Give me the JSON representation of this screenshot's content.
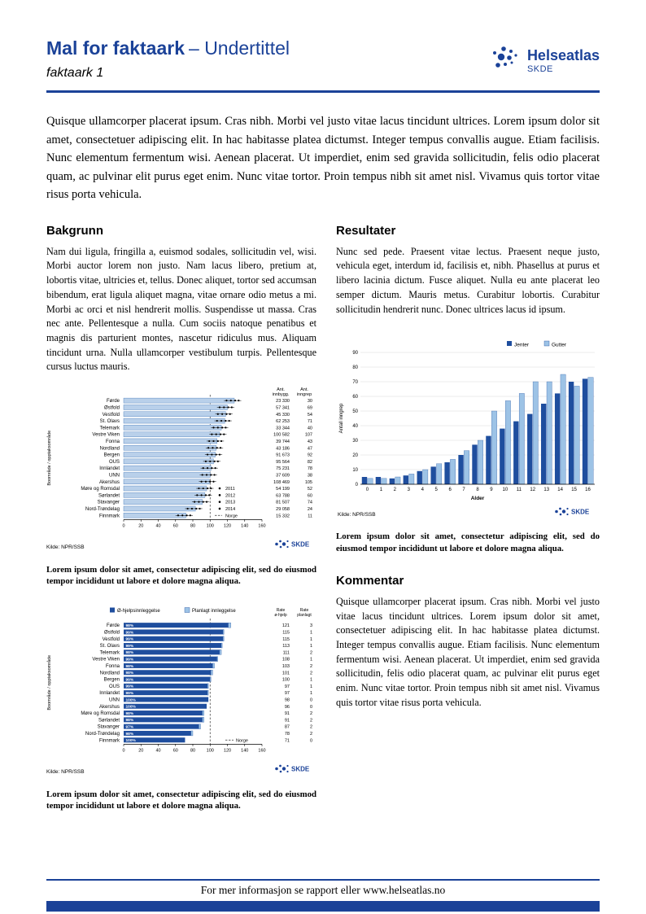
{
  "colors": {
    "brand": "#1b4298",
    "bar_dark": "#1f4e9e",
    "bar_light": "#b9d0ea",
    "bar_light_stroke": "#5f8cc4",
    "bar_light2": "#9dc3e6",
    "grid": "#d8d8d8"
  },
  "header": {
    "title_bold": "Mal for faktaark",
    "title_light": "– Undertittel",
    "subtitle": "faktaark 1",
    "logo_name": "Helseatlas",
    "logo_sub": "SKDE"
  },
  "intro": "Quisque ullamcorper placerat ipsum. Cras nibh. Morbi vel justo vitae lacus tincidunt ultrices. Lorem ipsum dolor sit amet, consectetuer adipiscing elit. In hac habitasse platea dictumst. Integer tempus convallis augue. Etiam facilisis. Nunc elementum fermentum wisi. Aenean placerat. Ut imperdiet, enim sed gravida sollicitudin, felis odio placerat quam, ac pulvinar elit purus eget enim. Nunc vitae tortor. Proin tempus nibh sit amet nisl. Vivamus quis tortor vitae risus porta vehicula.",
  "sections": {
    "bakgrunn": {
      "heading": "Bakgrunn",
      "body": "Nam dui ligula, fringilla a, euismod sodales, sollicitudin vel, wisi. Morbi auctor lorem non justo. Nam lacus libero, pretium at, lobortis vitae, ultricies et, tellus. Donec aliquet, tortor sed accumsan bibendum, erat ligula aliquet magna, vitae ornare odio metus a mi. Morbi ac orci et nisl hendrerit mollis. Suspendisse ut massa. Cras nec ante. Pellentesque a nulla. Cum sociis natoque penatibus et magnis dis parturient montes, nascetur ridiculus mus. Aliquam tincidunt urna. Nulla ullamcorper vestibulum turpis. Pellentesque cursus luctus mauris."
    },
    "resultater": {
      "heading": "Resultater",
      "body": "Nunc sed pede. Praesent vitae lectus. Praesent neque justo, vehicula eget, interdum id, facilisis et, nibh. Phasellus at purus et libero lacinia dictum. Fusce aliquet. Nulla eu ante placerat leo semper dictum. Mauris metus. Curabitur lobortis. Curabitur sollicitudin hendrerit nunc. Donec ultrices lacus id ipsum."
    },
    "kommentar": {
      "heading": "Kommentar",
      "body": "Quisque ullamcorper placerat ipsum. Cras nibh. Morbi vel justo vitae lacus tincidunt ultrices. Lorem ipsum dolor sit amet, consectetuer adipiscing elit. In hac habitasse platea dictumst. Integer tempus convallis augue. Etiam facilisis. Nunc elementum fermentum wisi. Aenean placerat. Ut imperdiet, enim sed gravida sollicitudin, felis odio placerat quam, ac pulvinar elit purus eget enim. Nunc vitae tortor. Proin tempus nibh sit amet nisl. Vivamus quis tortor vitae risus porta vehicula."
    }
  },
  "captions": {
    "chart1": "Lorem ipsum dolor sit amet, consectetur adipiscing elit, sed do eiusmod tempor incididunt ut labore et dolore magna aliqua.",
    "chart2": "Lorem ipsum dolor sit amet, consectetur adipiscing elit, sed do eiusmod tempor incididunt ut labore et dolore magna aliqua.",
    "chart3": "Lorem ipsum dolor sit amet, consectetur adipiscing elit, sed do eiusmod tempor incididunt ut labore et dolore magna aliqua."
  },
  "footer": {
    "text": "For mer informasjon se rapport eller www.helseatlas.no"
  },
  "chart_data": [
    {
      "type": "bar",
      "orientation": "horizontal",
      "title": "",
      "ylabel": "Boområde / opptaksområde",
      "categories": [
        "Førde",
        "Østfold",
        "Vestfold",
        "St. Olavs",
        "Telemark",
        "Vestre Viken",
        "Fonna",
        "Nordland",
        "Bergen",
        "OUS",
        "Innlandet",
        "UNN",
        "Akershus",
        "Møre og Romsdal",
        "Sørlandet",
        "Stavanger",
        "Nord-Trøndelag",
        "Finnmark"
      ],
      "rates": [
        128,
        120,
        118,
        117,
        113,
        111,
        108,
        107,
        106,
        104,
        101,
        100,
        99,
        96,
        94,
        91,
        83,
        72
      ],
      "xlim": [
        0,
        160
      ],
      "xticks": [
        0,
        20,
        40,
        60,
        80,
        100,
        120,
        140,
        160
      ],
      "norge_line": 100,
      "legend": [
        "2011",
        "2012",
        "2013",
        "2014",
        "Norge"
      ],
      "table": {
        "col1_header": "Ant. innbygg.",
        "col2_header": "Ant. inngrep",
        "col1": [
          "23 330",
          "57 341",
          "45 330",
          "62 253",
          "33 344",
          "100 582",
          "39 744",
          "43 186",
          "91 673",
          "95 564",
          "75 231",
          "37 609",
          "108 469",
          "54 199",
          "63 788",
          "81 507",
          "29 058",
          "15 332"
        ],
        "col2": [
          30,
          69,
          54,
          71,
          40,
          107,
          43,
          47,
          92,
          82,
          78,
          38,
          105,
          52,
          60,
          74,
          24,
          11
        ]
      },
      "source": "Kilde: NPR/SSB"
    },
    {
      "type": "bar",
      "orientation": "vertical",
      "title": "",
      "xlabel": "Alder",
      "ylabel": "Antall inngrep",
      "categories": [
        0,
        1,
        2,
        3,
        4,
        5,
        6,
        7,
        8,
        9,
        10,
        11,
        12,
        13,
        14,
        15,
        16
      ],
      "series": [
        {
          "name": "Jenter",
          "values": [
            5,
            5,
            4,
            6,
            9,
            12,
            15,
            20,
            27,
            33,
            38,
            43,
            48,
            55,
            62,
            70,
            72
          ]
        },
        {
          "name": "Gutter",
          "values": [
            4,
            4,
            5,
            7,
            10,
            14,
            17,
            23,
            30,
            50,
            57,
            62,
            70,
            70,
            75,
            67,
            73
          ]
        }
      ],
      "ylim": [
        0,
        90
      ],
      "yticks_step": 10,
      "grid": true,
      "legend_position": "top-right",
      "source": "Kilde: NPR/SSB"
    },
    {
      "type": "bar",
      "orientation": "horizontal",
      "stacked": true,
      "title": "",
      "ylabel": "Boområde / opptaksområde",
      "legend": [
        "Ø-hjelpsinnleggelse",
        "Planlagt innleggelse"
      ],
      "categories": [
        "Førde",
        "Østfold",
        "Vestfold",
        "St. Olavs",
        "Telemark",
        "Vestre Viken",
        "Fonna",
        "Nordland",
        "Bergen",
        "OUS",
        "Innlandet",
        "UNN",
        "Akershus",
        "Møre og Romsdal",
        "Sørlandet",
        "Stavanger",
        "Nord-Trøndelag",
        "Finnmark"
      ],
      "series": [
        {
          "name": "Ø-hjelpsinnleggelse",
          "values": [
            121,
            115,
            115,
            113,
            111,
            108,
            103,
            101,
            100,
            97,
            97,
            98,
            96,
            91,
            91,
            87,
            78,
            71
          ]
        },
        {
          "name": "Planlagt innleggelse",
          "values": [
            3,
            1,
            1,
            1,
            2,
            1,
            2,
            2,
            1,
            1,
            1,
            0,
            0,
            2,
            2,
            2,
            2,
            0
          ]
        }
      ],
      "pct_labels": [
        "98%",
        "99%",
        "99%",
        "99%",
        "98%",
        "99%",
        "98%",
        "98%",
        "99%",
        "99%",
        "99%",
        "100%",
        "100%",
        "98%",
        "98%",
        "97%",
        "98%",
        "100%"
      ],
      "xlim": [
        0,
        160
      ],
      "xticks": [
        0,
        20,
        40,
        60,
        80,
        100,
        120,
        140,
        160
      ],
      "norge_line": 100,
      "norge_label": "Norge",
      "table": {
        "col1_header": "Rate ø-hjelp",
        "col2_header": "Rate planlagt",
        "col1": [
          121,
          115,
          115,
          113,
          111,
          108,
          103,
          101,
          100,
          97,
          97,
          98,
          96,
          91,
          91,
          87,
          78,
          71
        ],
        "col2": [
          3,
          1,
          1,
          1,
          2,
          1,
          2,
          2,
          1,
          1,
          1,
          0,
          0,
          2,
          2,
          2,
          2,
          0
        ]
      },
      "source": "Kilde: NPR/SSB"
    }
  ]
}
